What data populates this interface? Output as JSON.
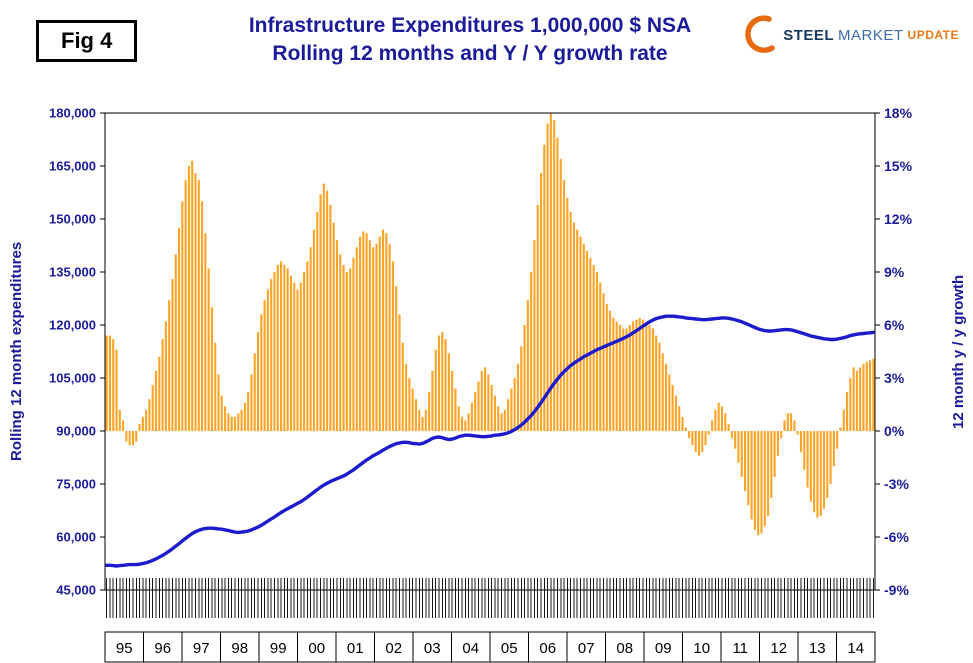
{
  "header": {
    "fig_label": "Fig 4",
    "title_line1": "Infrastructure Expenditures 1,000,000 $ NSA",
    "title_line2": "Rolling 12 months and Y / Y growth rate"
  },
  "logo": {
    "steel": "STEEL",
    "market": "MARKET",
    "update": "UPDATE"
  },
  "colors": {
    "title": "#1b1b99",
    "axis_text": "#1b1b99",
    "bar": "#fba427",
    "bar_stroke": "#e2920e",
    "line": "#1c1cce",
    "plot_border": "#000000",
    "month_tick": "#1a1a1a",
    "logo_swoosh": "#e86a10"
  },
  "chart_data": {
    "type": "combo",
    "title": "Infrastructure Expenditures 1,000,000 $ NSA — Rolling 12 months and Y / Y growth rate",
    "frequency": "monthly",
    "x_axis": {
      "years": [
        "95",
        "96",
        "97",
        "98",
        "99",
        "00",
        "01",
        "02",
        "03",
        "04",
        "05",
        "06",
        "07",
        "08",
        "09",
        "10",
        "11",
        "12",
        "13",
        "14"
      ],
      "start_year": 1995,
      "months": 234
    },
    "left_axis": {
      "label": "Rolling 12 month expenditures",
      "min": 45000,
      "max": 180000,
      "tick_step": 15000,
      "ticks": [
        "45,000",
        "60,000",
        "75,000",
        "90,000",
        "105,000",
        "120,000",
        "135,000",
        "150,000",
        "165,000",
        "180,000"
      ]
    },
    "right_axis": {
      "label": "12 month y / y growth",
      "min": -9,
      "max": 18,
      "tick_step": 3,
      "ticks": [
        "-9%",
        "-6%",
        "-3%",
        "0%",
        "3%",
        "6%",
        "9%",
        "12%",
        "15%",
        "18%"
      ]
    },
    "baseline_right_pct": 0,
    "gridlines": false,
    "series": [
      {
        "name": "12 month y / y growth",
        "type": "bar",
        "axis": "right",
        "unit": "%",
        "color": "#fba427",
        "values": [
          5.4,
          5.4,
          5.2,
          4.6,
          1.2,
          0.6,
          -0.6,
          -0.8,
          -0.8,
          -0.6,
          0.4,
          0.8,
          1.2,
          1.8,
          2.6,
          3.4,
          4.2,
          5.2,
          6.2,
          7.4,
          8.6,
          10,
          11.5,
          13,
          14.2,
          15,
          15.3,
          14.6,
          14.2,
          13,
          11.2,
          9.2,
          7,
          5,
          3.2,
          2,
          1.4,
          1,
          0.8,
          0.8,
          1,
          1.2,
          1.6,
          2.2,
          3.2,
          4.4,
          5.6,
          6.6,
          7.4,
          8,
          8.6,
          9,
          9.4,
          9.6,
          9.4,
          9.2,
          8.8,
          8.4,
          8,
          8.4,
          9,
          9.6,
          10.4,
          11.4,
          12.4,
          13.4,
          14,
          13.6,
          12.8,
          11.8,
          10.8,
          10,
          9.4,
          9,
          9.2,
          9.8,
          10.4,
          11,
          11.3,
          11.2,
          10.8,
          10.4,
          10.6,
          11,
          11.4,
          11.2,
          10.6,
          9.6,
          8.2,
          6.6,
          5,
          3.8,
          3,
          2.4,
          1.8,
          1.2,
          0.8,
          1.2,
          2.2,
          3.4,
          4.6,
          5.4,
          5.6,
          5.2,
          4.4,
          3.4,
          2.4,
          1.4,
          0.8,
          0.6,
          1,
          1.6,
          2.2,
          2.8,
          3.4,
          3.6,
          3.2,
          2.6,
          2,
          1.4,
          1,
          1.2,
          1.8,
          2.4,
          3,
          3.8,
          4.8,
          6,
          7.4,
          9,
          10.8,
          12.8,
          14.6,
          16.2,
          17.4,
          18,
          17.6,
          16.6,
          15.4,
          14.2,
          13.2,
          12.4,
          11.8,
          11.4,
          11,
          10.6,
          10.2,
          9.8,
          9.4,
          9,
          8.4,
          7.8,
          7.2,
          6.8,
          6.4,
          6.2,
          6,
          5.8,
          5.8,
          6,
          6.2,
          6.3,
          6.4,
          6.3,
          6.2,
          6,
          5.8,
          5.4,
          5,
          4.4,
          3.8,
          3.2,
          2.6,
          2,
          1.4,
          0.8,
          0.2,
          -0.4,
          -0.8,
          -1.2,
          -1.4,
          -1.2,
          -0.8,
          -0.2,
          0.6,
          1.2,
          1.6,
          1.4,
          1,
          0.4,
          -0.4,
          -1,
          -1.8,
          -2.6,
          -3.4,
          -4.2,
          -5,
          -5.6,
          -5.9,
          -5.8,
          -5.4,
          -4.8,
          -3.8,
          -2.6,
          -1.4,
          -0.4,
          0.6,
          1,
          1,
          0.6,
          -0.2,
          -1.2,
          -2.2,
          -3.2,
          -4,
          -4.6,
          -4.9,
          -4.8,
          -4.4,
          -3.8,
          -3,
          -2,
          -1,
          0.2,
          1.2,
          2.2,
          3,
          3.6,
          3.4,
          3.6,
          3.8,
          3.9,
          4,
          4.1
        ]
      },
      {
        "name": "Rolling 12 month expenditures",
        "type": "line",
        "axis": "left",
        "unit": "1,000,000 $",
        "color": "#1c1cce",
        "values": [
          52000,
          52000,
          51900,
          51800,
          51900,
          52000,
          52100,
          52200,
          52200,
          52200,
          52300,
          52500,
          52700,
          53000,
          53400,
          53800,
          54300,
          54800,
          55400,
          56000,
          56700,
          57400,
          58100,
          58900,
          59600,
          60300,
          61000,
          61500,
          61900,
          62200,
          62400,
          62500,
          62500,
          62400,
          62300,
          62200,
          62000,
          61800,
          61600,
          61400,
          61300,
          61400,
          61500,
          61700,
          62000,
          62400,
          62800,
          63300,
          63900,
          64500,
          65100,
          65700,
          66300,
          66900,
          67500,
          68000,
          68500,
          69000,
          69500,
          70000,
          70600,
          71300,
          72000,
          72700,
          73400,
          74100,
          74700,
          75200,
          75700,
          76100,
          76500,
          76900,
          77300,
          77800,
          78400,
          79000,
          79700,
          80400,
          81100,
          81800,
          82400,
          83000,
          83500,
          84000,
          84600,
          85100,
          85600,
          86000,
          86400,
          86600,
          86800,
          86800,
          86700,
          86500,
          86400,
          86300,
          86500,
          86900,
          87400,
          87900,
          88200,
          88300,
          88100,
          87800,
          87600,
          87700,
          88000,
          88400,
          88600,
          88800,
          88800,
          88700,
          88600,
          88500,
          88400,
          88400,
          88500,
          88600,
          88800,
          88900,
          89000,
          89200,
          89500,
          89900,
          90400,
          91000,
          91700,
          92500,
          93400,
          94400,
          95500,
          96700,
          98000,
          99400,
          100800,
          102200,
          103500,
          104700,
          105800,
          106800,
          107700,
          108500,
          109200,
          109800,
          110400,
          111000,
          111500,
          112000,
          112500,
          113000,
          113400,
          113800,
          114200,
          114600,
          115000,
          115400,
          115800,
          116200,
          116700,
          117200,
          117800,
          118400,
          119000,
          119700,
          120300,
          120900,
          121400,
          121800,
          122100,
          122300,
          122500,
          122500,
          122500,
          122400,
          122300,
          122200,
          122000,
          121900,
          121800,
          121700,
          121600,
          121500,
          121500,
          121600,
          121700,
          121800,
          121900,
          122000,
          122000,
          121900,
          121700,
          121500,
          121200,
          120900,
          120500,
          120100,
          119700,
          119300,
          118900,
          118600,
          118400,
          118300,
          118300,
          118400,
          118500,
          118600,
          118700,
          118700,
          118600,
          118400,
          118100,
          117800,
          117500,
          117200,
          116900,
          116700,
          116500,
          116300,
          116100,
          116000,
          115900,
          115900,
          116000,
          116200,
          116400,
          116700,
          117000,
          117200,
          117400,
          117500,
          117600,
          117700,
          117800,
          117900
        ]
      }
    ]
  }
}
